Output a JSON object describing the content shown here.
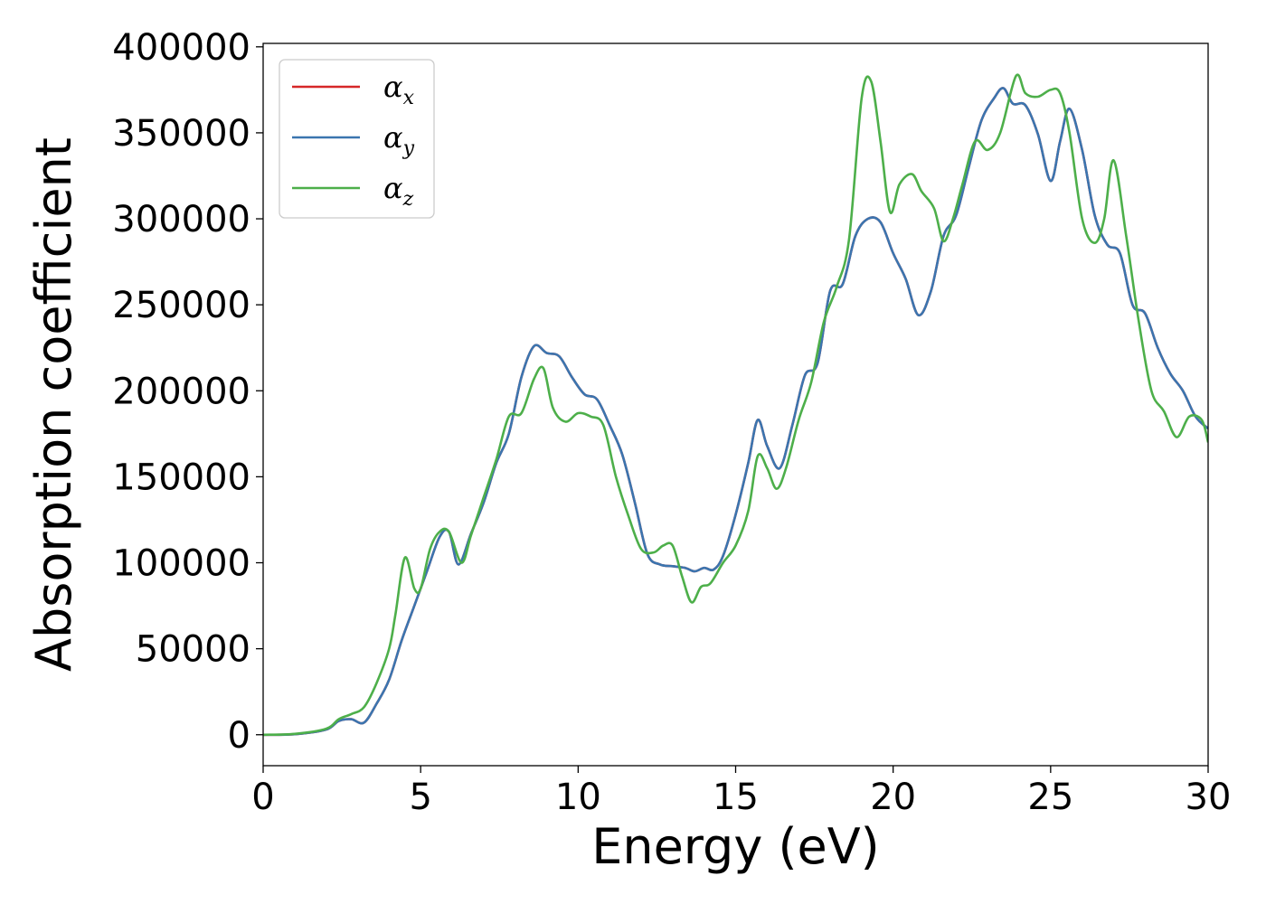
{
  "chart_data": {
    "type": "line",
    "title": "",
    "xlabel": "Energy (eV)",
    "ylabel": "Absorption coefficient",
    "xlim": [
      0,
      30
    ],
    "ylim": [
      -18000,
      402000
    ],
    "xticks": [
      0,
      5,
      10,
      15,
      20,
      25,
      30
    ],
    "yticks": [
      0,
      50000,
      100000,
      150000,
      200000,
      250000,
      300000,
      350000,
      400000
    ],
    "xtick_labels": [
      "0",
      "5",
      "10",
      "15",
      "20",
      "25",
      "30"
    ],
    "ytick_labels": [
      "0",
      "50000",
      "100000",
      "150000",
      "200000",
      "250000",
      "300000",
      "350000",
      "400000"
    ],
    "grid": false,
    "legend_position": "top-left",
    "series": [
      {
        "name": "α",
        "subscript": "x",
        "color": "#d62728",
        "x": [
          0,
          1,
          2,
          2.4,
          2.8,
          3.2,
          3.6,
          4.0,
          4.4,
          4.8,
          5.2,
          5.6,
          5.9,
          6.2,
          6.6,
          7.0,
          7.4,
          7.8,
          8.2,
          8.6,
          9.0,
          9.4,
          9.8,
          10.2,
          10.6,
          11.0,
          11.4,
          11.8,
          12.2,
          12.6,
          13.0,
          13.4,
          13.7,
          14.0,
          14.3,
          14.6,
          15.0,
          15.4,
          15.7,
          16.0,
          16.4,
          16.8,
          17.2,
          17.6,
          18.0,
          18.4,
          18.8,
          19.2,
          19.6,
          20.0,
          20.4,
          20.8,
          21.2,
          21.6,
          22.0,
          22.4,
          22.8,
          23.2,
          23.5,
          23.8,
          24.2,
          24.6,
          25.0,
          25.3,
          25.6,
          26.0,
          26.4,
          26.8,
          27.2,
          27.6,
          28.0,
          28.4,
          28.8,
          29.2,
          29.6,
          30.0
        ],
        "values": [
          0,
          300,
          3000,
          8000,
          9000,
          7000,
          18000,
          32000,
          55000,
          75000,
          95000,
          115000,
          118000,
          99000,
          117000,
          135000,
          158000,
          175000,
          208000,
          226000,
          222000,
          220000,
          208000,
          198000,
          195000,
          180000,
          163000,
          135000,
          105000,
          99000,
          98000,
          97000,
          95000,
          97000,
          96000,
          104000,
          128000,
          158000,
          183000,
          168000,
          155000,
          180000,
          209000,
          216000,
          258000,
          262000,
          290000,
          300000,
          298000,
          280000,
          265000,
          244000,
          258000,
          290000,
          302000,
          330000,
          357000,
          370000,
          376000,
          367000,
          366000,
          349000,
          322000,
          345000,
          364000,
          340000,
          302000,
          285000,
          280000,
          250000,
          245000,
          225000,
          210000,
          200000,
          185000,
          178000
        ]
      },
      {
        "name": "α",
        "subscript": "y",
        "color": "#3b75af",
        "x": [
          0,
          1,
          2,
          2.4,
          2.8,
          3.2,
          3.6,
          4.0,
          4.4,
          4.8,
          5.2,
          5.6,
          5.9,
          6.2,
          6.6,
          7.0,
          7.4,
          7.8,
          8.2,
          8.6,
          9.0,
          9.4,
          9.8,
          10.2,
          10.6,
          11.0,
          11.4,
          11.8,
          12.2,
          12.6,
          13.0,
          13.4,
          13.7,
          14.0,
          14.3,
          14.6,
          15.0,
          15.4,
          15.7,
          16.0,
          16.4,
          16.8,
          17.2,
          17.6,
          18.0,
          18.4,
          18.8,
          19.2,
          19.6,
          20.0,
          20.4,
          20.8,
          21.2,
          21.6,
          22.0,
          22.4,
          22.8,
          23.2,
          23.5,
          23.8,
          24.2,
          24.6,
          25.0,
          25.3,
          25.6,
          26.0,
          26.4,
          26.8,
          27.2,
          27.6,
          28.0,
          28.4,
          28.8,
          29.2,
          29.6,
          30.0
        ],
        "values": [
          0,
          300,
          3000,
          8000,
          9000,
          7000,
          18000,
          32000,
          55000,
          75000,
          95000,
          115000,
          118000,
          99000,
          117000,
          135000,
          158000,
          175000,
          208000,
          226000,
          222000,
          220000,
          208000,
          198000,
          195000,
          180000,
          163000,
          135000,
          105000,
          99000,
          98000,
          97000,
          95000,
          97000,
          96000,
          104000,
          128000,
          158000,
          183000,
          168000,
          155000,
          180000,
          209000,
          216000,
          258000,
          262000,
          290000,
          300000,
          298000,
          280000,
          265000,
          244000,
          258000,
          290000,
          302000,
          330000,
          357000,
          370000,
          376000,
          367000,
          366000,
          349000,
          322000,
          345000,
          364000,
          340000,
          302000,
          285000,
          280000,
          250000,
          245000,
          225000,
          210000,
          200000,
          185000,
          178000
        ]
      },
      {
        "name": "α",
        "subscript": "z",
        "color": "#4daf4a",
        "x": [
          0,
          1,
          2,
          2.4,
          2.8,
          3.2,
          3.6,
          4.0,
          4.2,
          4.5,
          4.8,
          5.0,
          5.3,
          5.6,
          5.9,
          6.3,
          6.6,
          7.0,
          7.4,
          7.8,
          8.2,
          8.6,
          8.9,
          9.2,
          9.6,
          10.0,
          10.4,
          10.8,
          11.2,
          11.6,
          12.0,
          12.4,
          12.7,
          13.0,
          13.3,
          13.6,
          13.9,
          14.2,
          14.6,
          15.0,
          15.4,
          15.7,
          16.0,
          16.3,
          16.6,
          17.0,
          17.4,
          17.8,
          18.2,
          18.6,
          19.0,
          19.3,
          19.6,
          19.9,
          20.2,
          20.6,
          20.9,
          21.3,
          21.6,
          21.9,
          22.2,
          22.6,
          23.0,
          23.4,
          23.9,
          24.2,
          24.6,
          25.0,
          25.3,
          25.6,
          26.0,
          26.4,
          26.7,
          27.0,
          27.4,
          27.8,
          28.2,
          28.6,
          29.0,
          29.4,
          29.8,
          30.0
        ],
        "values": [
          0,
          500,
          3500,
          9000,
          12000,
          16000,
          30000,
          50000,
          70000,
          103000,
          85000,
          85000,
          108000,
          118000,
          118000,
          100000,
          116000,
          138000,
          160000,
          185000,
          187000,
          207000,
          213000,
          190000,
          182000,
          187000,
          185000,
          180000,
          150000,
          127000,
          108000,
          106000,
          110000,
          110000,
          92000,
          77000,
          86000,
          88000,
          100000,
          110000,
          130000,
          162000,
          155000,
          143000,
          155000,
          183000,
          205000,
          240000,
          260000,
          288000,
          370000,
          380000,
          345000,
          304000,
          320000,
          326000,
          316000,
          306000,
          287000,
          300000,
          320000,
          345000,
          340000,
          350000,
          383000,
          373000,
          371000,
          375000,
          373000,
          350000,
          300000,
          286000,
          300000,
          334000,
          290000,
          240000,
          200000,
          188000,
          173000,
          185000,
          183000,
          170000
        ]
      }
    ]
  }
}
